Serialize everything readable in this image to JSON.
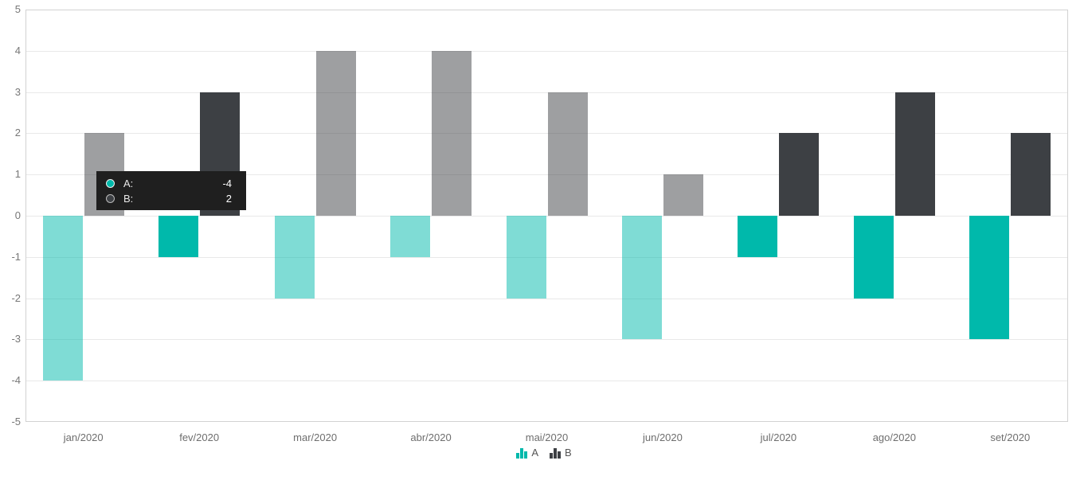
{
  "chart_data": {
    "type": "bar",
    "title": "",
    "categories": [
      "jan/2020",
      "fev/2020",
      "mar/2020",
      "abr/2020",
      "mai/2020",
      "jun/2020",
      "jul/2020",
      "ago/2020",
      "set/2020"
    ],
    "series": [
      {
        "name": "A",
        "color": "#00b9ab",
        "values": [
          -4,
          -1,
          -2,
          -1,
          -2,
          -3,
          -1,
          -2,
          -3
        ]
      },
      {
        "name": "B",
        "color": "#3d4044",
        "values": [
          2,
          3,
          4,
          4,
          3,
          1,
          2,
          3,
          2
        ]
      }
    ],
    "dimmed_categories": [
      true,
      false,
      true,
      true,
      true,
      true,
      false,
      false,
      false
    ],
    "xlabel": "",
    "ylabel": "",
    "ylim": [
      -5,
      5
    ],
    "yticks": [
      5,
      4,
      3,
      2,
      1,
      0,
      -1,
      -2,
      -3,
      -4,
      -5
    ],
    "grid": true,
    "legend_position": "bottom"
  },
  "legend": {
    "items": [
      {
        "label": "A",
        "color": "#00b9ab"
      },
      {
        "label": "B",
        "color": "#3d4044"
      }
    ]
  },
  "tooltip": {
    "rows": [
      {
        "label": "A:",
        "value": "-4",
        "marker_color": "#00b9ab"
      },
      {
        "label": "B:",
        "value": "2",
        "marker_color": "#3d4044"
      }
    ]
  },
  "colors": {
    "series_a": "#00b9ab",
    "series_b": "#3d4044",
    "gridline": "#e9e9e9",
    "plot_border": "#d2d2d2",
    "axis_text": "#777777",
    "tooltip_bg": "#1f1f1f"
  }
}
